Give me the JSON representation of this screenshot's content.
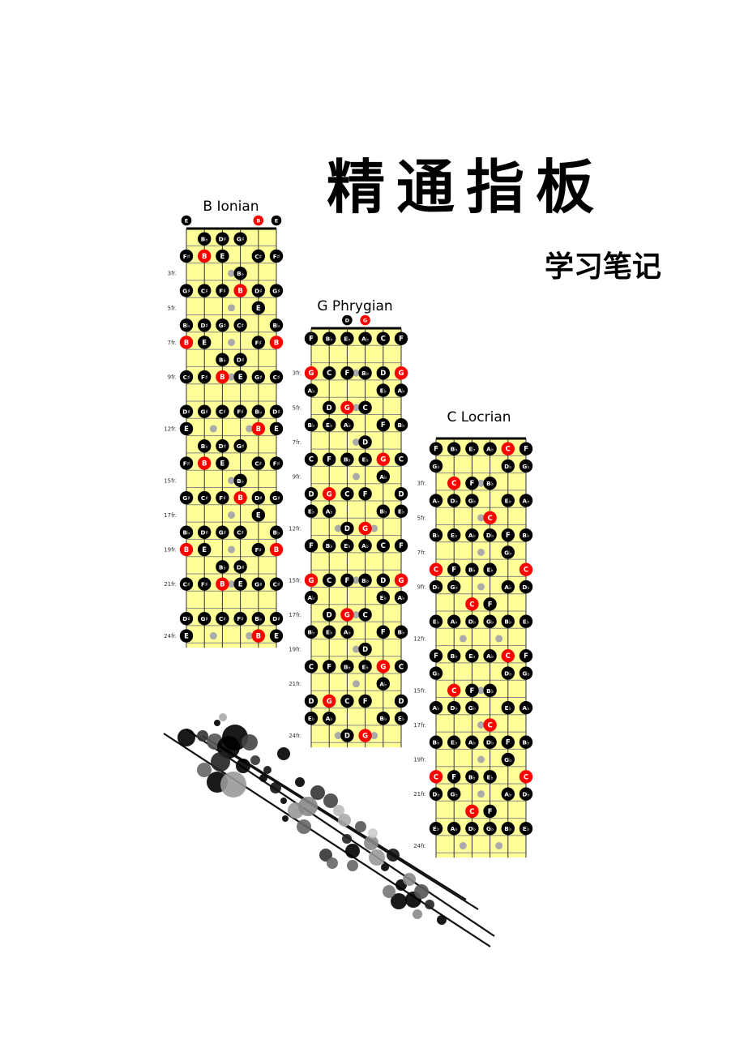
{
  "document": {
    "title": "精通指板",
    "subtitle": "学习笔记"
  },
  "colors": {
    "fretboard": "#ffff99",
    "note": "#000000",
    "root": "#ff0000",
    "marker": "#aaaaaa"
  },
  "fret_label_suffix": "fr.",
  "fretboards": [
    {
      "name": "B Ionian",
      "frets": 24,
      "start_fret": 0,
      "open_notes": [
        {
          "s": 1,
          "n": "E"
        },
        {
          "s": 5,
          "n": "B",
          "root": true
        },
        {
          "s": 6,
          "n": "E"
        }
      ],
      "labeled_frets": [
        3,
        5,
        7,
        9,
        12,
        15,
        17,
        19,
        21,
        24
      ],
      "marker_frets": [
        3,
        5,
        7,
        9,
        12,
        15,
        17,
        19,
        21,
        24
      ],
      "rows": {
        "1": [
          [
            2,
            "B♭"
          ],
          [
            3,
            "D♯"
          ],
          [
            4,
            "G♯"
          ]
        ],
        "2": [
          [
            1,
            "F♯"
          ],
          [
            2,
            "B",
            1
          ],
          [
            3,
            "E"
          ],
          [
            5,
            "C♯"
          ],
          [
            6,
            "F♯"
          ]
        ],
        "3": [
          [
            4,
            "B♭"
          ]
        ],
        "4": [
          [
            1,
            "G♯"
          ],
          [
            2,
            "C♯"
          ],
          [
            3,
            "F♯"
          ],
          [
            4,
            "B",
            1
          ],
          [
            5,
            "D♯"
          ],
          [
            6,
            "G♯"
          ]
        ],
        "5": [
          [
            5,
            "E"
          ]
        ],
        "6": [
          [
            1,
            "B♭"
          ],
          [
            2,
            "D♯"
          ],
          [
            3,
            "G♯"
          ],
          [
            4,
            "C♯"
          ],
          [
            6,
            "B♭"
          ]
        ],
        "7": [
          [
            1,
            "B",
            1
          ],
          [
            2,
            "E"
          ],
          [
            5,
            "F♯"
          ],
          [
            6,
            "B",
            1
          ]
        ],
        "8": [
          [
            3,
            "B♭"
          ],
          [
            4,
            "D♯"
          ]
        ],
        "9": [
          [
            1,
            "C♯"
          ],
          [
            2,
            "F♯"
          ],
          [
            3,
            "B",
            1
          ],
          [
            4,
            "E"
          ],
          [
            5,
            "G♯"
          ],
          [
            6,
            "C♯"
          ]
        ],
        "11": [
          [
            1,
            "D♯"
          ],
          [
            2,
            "G♯"
          ],
          [
            3,
            "C♯"
          ],
          [
            4,
            "F♯"
          ],
          [
            5,
            "B♭"
          ],
          [
            6,
            "D♯"
          ]
        ],
        "12": [
          [
            1,
            "E"
          ],
          [
            5,
            "B",
            1
          ],
          [
            6,
            "E"
          ]
        ],
        "13": [
          [
            2,
            "B♭"
          ],
          [
            3,
            "D♯"
          ],
          [
            4,
            "G♯"
          ]
        ],
        "14": [
          [
            1,
            "F♯"
          ],
          [
            2,
            "B",
            1
          ],
          [
            3,
            "E"
          ],
          [
            5,
            "C♯"
          ],
          [
            6,
            "F♯"
          ]
        ],
        "15": [
          [
            4,
            "B♭"
          ]
        ],
        "16": [
          [
            1,
            "G♯"
          ],
          [
            2,
            "C♯"
          ],
          [
            3,
            "F♯"
          ],
          [
            4,
            "B",
            1
          ],
          [
            5,
            "D♯"
          ],
          [
            6,
            "G♯"
          ]
        ],
        "17": [
          [
            5,
            "E"
          ]
        ],
        "18": [
          [
            1,
            "B♭"
          ],
          [
            2,
            "D♯"
          ],
          [
            3,
            "G♯"
          ],
          [
            4,
            "C♯"
          ],
          [
            6,
            "B♭"
          ]
        ],
        "19": [
          [
            1,
            "B",
            1
          ],
          [
            2,
            "E"
          ],
          [
            5,
            "F♯"
          ],
          [
            6,
            "B",
            1
          ]
        ],
        "20": [
          [
            3,
            "B♭"
          ],
          [
            4,
            "D♯"
          ]
        ],
        "21": [
          [
            1,
            "C♯"
          ],
          [
            2,
            "F♯"
          ],
          [
            3,
            "B",
            1
          ],
          [
            4,
            "E"
          ],
          [
            5,
            "G♯"
          ],
          [
            6,
            "C♯"
          ]
        ],
        "23": [
          [
            1,
            "D♯"
          ],
          [
            2,
            "G♯"
          ],
          [
            3,
            "C♯"
          ],
          [
            4,
            "F♯"
          ],
          [
            5,
            "B♭"
          ],
          [
            6,
            "D♯"
          ]
        ],
        "24": [
          [
            1,
            "E"
          ],
          [
            5,
            "B",
            1
          ],
          [
            6,
            "E"
          ]
        ]
      }
    },
    {
      "name": "G Phrygian",
      "frets": 24,
      "start_fret": 0,
      "open_notes": [
        {
          "s": 3,
          "n": "D"
        },
        {
          "s": 4,
          "n": "G",
          "root": true
        }
      ],
      "labeled_frets": [
        3,
        5,
        7,
        9,
        12,
        15,
        17,
        19,
        21,
        24
      ],
      "marker_frets": [
        3,
        5,
        7,
        9,
        12,
        15,
        17,
        19,
        21,
        24
      ],
      "rows": {
        "1": [
          [
            1,
            "F"
          ],
          [
            2,
            "B♭"
          ],
          [
            3,
            "E♭"
          ],
          [
            4,
            "A♭"
          ],
          [
            5,
            "C"
          ],
          [
            6,
            "F"
          ]
        ],
        "3": [
          [
            1,
            "G",
            1
          ],
          [
            2,
            "C"
          ],
          [
            3,
            "F"
          ],
          [
            4,
            "B♭"
          ],
          [
            5,
            "D"
          ],
          [
            6,
            "G",
            1
          ]
        ],
        "4": [
          [
            1,
            "A♭"
          ],
          [
            5,
            "E♭"
          ],
          [
            6,
            "A♭"
          ]
        ],
        "5": [
          [
            2,
            "D"
          ],
          [
            3,
            "G",
            1
          ],
          [
            4,
            "C"
          ]
        ],
        "6": [
          [
            1,
            "B♭"
          ],
          [
            2,
            "E♭"
          ],
          [
            3,
            "A♭"
          ],
          [
            5,
            "F"
          ],
          [
            6,
            "B♭"
          ]
        ],
        "7": [
          [
            4,
            "D"
          ]
        ],
        "8": [
          [
            1,
            "C"
          ],
          [
            2,
            "F"
          ],
          [
            3,
            "B♭"
          ],
          [
            4,
            "E♭"
          ],
          [
            5,
            "G",
            1
          ],
          [
            6,
            "C"
          ]
        ],
        "9": [
          [
            5,
            "A♭"
          ]
        ],
        "10": [
          [
            1,
            "D"
          ],
          [
            2,
            "G",
            1
          ],
          [
            3,
            "C"
          ],
          [
            4,
            "F"
          ],
          [
            6,
            "D"
          ]
        ],
        "11": [
          [
            1,
            "E♭"
          ],
          [
            2,
            "A♭"
          ],
          [
            5,
            "B♭"
          ],
          [
            6,
            "E♭"
          ]
        ],
        "12": [
          [
            3,
            "D"
          ],
          [
            4,
            "G",
            1
          ]
        ],
        "13": [
          [
            1,
            "F"
          ],
          [
            2,
            "B♭"
          ],
          [
            3,
            "E♭"
          ],
          [
            4,
            "A♭"
          ],
          [
            5,
            "C"
          ],
          [
            6,
            "F"
          ]
        ],
        "15": [
          [
            1,
            "G",
            1
          ],
          [
            2,
            "C"
          ],
          [
            3,
            "F"
          ],
          [
            4,
            "B♭"
          ],
          [
            5,
            "D"
          ],
          [
            6,
            "G",
            1
          ]
        ],
        "16": [
          [
            1,
            "A♭"
          ],
          [
            5,
            "E♭"
          ],
          [
            6,
            "A♭"
          ]
        ],
        "17": [
          [
            2,
            "D"
          ],
          [
            3,
            "G",
            1
          ],
          [
            4,
            "C"
          ]
        ],
        "18": [
          [
            1,
            "B♭"
          ],
          [
            2,
            "E♭"
          ],
          [
            3,
            "A♭"
          ],
          [
            5,
            "F"
          ],
          [
            6,
            "B♭"
          ]
        ],
        "19": [
          [
            4,
            "D"
          ]
        ],
        "20": [
          [
            1,
            "C"
          ],
          [
            2,
            "F"
          ],
          [
            3,
            "B♭"
          ],
          [
            4,
            "E♭"
          ],
          [
            5,
            "G",
            1
          ],
          [
            6,
            "C"
          ]
        ],
        "21": [
          [
            5,
            "A♭"
          ]
        ],
        "22": [
          [
            1,
            "D"
          ],
          [
            2,
            "G",
            1
          ],
          [
            3,
            "C"
          ],
          [
            4,
            "F"
          ],
          [
            6,
            "D"
          ]
        ],
        "23": [
          [
            1,
            "E♭"
          ],
          [
            2,
            "A♭"
          ],
          [
            5,
            "B♭"
          ],
          [
            6,
            "E♭"
          ]
        ],
        "24": [
          [
            3,
            "D"
          ],
          [
            4,
            "G",
            1
          ]
        ]
      }
    },
    {
      "name": "C Locrian",
      "frets": 24,
      "start_fret": 0,
      "open_notes": [],
      "labeled_frets": [
        3,
        5,
        7,
        9,
        12,
        15,
        17,
        19,
        21,
        24
      ],
      "marker_frets": [
        3,
        5,
        7,
        9,
        12,
        15,
        17,
        19,
        21,
        24
      ],
      "rows": {
        "1": [
          [
            1,
            "F"
          ],
          [
            2,
            "B♭"
          ],
          [
            3,
            "E♭"
          ],
          [
            4,
            "A♭"
          ],
          [
            5,
            "C",
            1
          ],
          [
            6,
            "F"
          ]
        ],
        "2": [
          [
            1,
            "G♭"
          ],
          [
            5,
            "D♭"
          ],
          [
            6,
            "G♭"
          ]
        ],
        "3": [
          [
            2,
            "C",
            1
          ],
          [
            3,
            "F"
          ],
          [
            4,
            "B♭"
          ]
        ],
        "4": [
          [
            1,
            "A♭"
          ],
          [
            2,
            "D♭"
          ],
          [
            3,
            "G♭"
          ],
          [
            5,
            "E♭"
          ],
          [
            6,
            "A♭"
          ]
        ],
        "5": [
          [
            4,
            "C",
            1
          ]
        ],
        "6": [
          [
            1,
            "B♭"
          ],
          [
            2,
            "E♭"
          ],
          [
            3,
            "A♭"
          ],
          [
            4,
            "D♭"
          ],
          [
            5,
            "F"
          ],
          [
            6,
            "B♭"
          ]
        ],
        "7": [
          [
            5,
            "G♭"
          ]
        ],
        "8": [
          [
            1,
            "C",
            1
          ],
          [
            2,
            "F"
          ],
          [
            3,
            "B♭"
          ],
          [
            4,
            "E♭"
          ],
          [
            6,
            "C",
            1
          ]
        ],
        "9": [
          [
            1,
            "D♭"
          ],
          [
            2,
            "G♭"
          ],
          [
            5,
            "A♭"
          ],
          [
            6,
            "D♭"
          ]
        ],
        "10": [
          [
            3,
            "C",
            1
          ],
          [
            4,
            "F"
          ]
        ],
        "11": [
          [
            1,
            "E♭"
          ],
          [
            2,
            "A♭"
          ],
          [
            3,
            "D♭"
          ],
          [
            4,
            "G♭"
          ],
          [
            5,
            "B♭"
          ],
          [
            6,
            "E♭"
          ]
        ],
        "13": [
          [
            1,
            "F"
          ],
          [
            2,
            "B♭"
          ],
          [
            3,
            "E♭"
          ],
          [
            4,
            "A♭"
          ],
          [
            5,
            "C",
            1
          ],
          [
            6,
            "F"
          ]
        ],
        "14": [
          [
            1,
            "G♭"
          ],
          [
            5,
            "D♭"
          ],
          [
            6,
            "G♭"
          ]
        ],
        "15": [
          [
            2,
            "C",
            1
          ],
          [
            3,
            "F"
          ],
          [
            4,
            "B♭"
          ]
        ],
        "16": [
          [
            1,
            "A♭"
          ],
          [
            2,
            "D♭"
          ],
          [
            3,
            "G♭"
          ],
          [
            5,
            "E♭"
          ],
          [
            6,
            "A♭"
          ]
        ],
        "17": [
          [
            4,
            "C",
            1
          ]
        ],
        "18": [
          [
            1,
            "B♭"
          ],
          [
            2,
            "E♭"
          ],
          [
            3,
            "A♭"
          ],
          [
            4,
            "D♭"
          ],
          [
            5,
            "F"
          ],
          [
            6,
            "B♭"
          ]
        ],
        "19": [
          [
            5,
            "G♭"
          ]
        ],
        "20": [
          [
            1,
            "C",
            1
          ],
          [
            2,
            "F"
          ],
          [
            3,
            "B♭"
          ],
          [
            4,
            "E♭"
          ],
          [
            6,
            "C",
            1
          ]
        ],
        "21": [
          [
            1,
            "D♭"
          ],
          [
            2,
            "G♭"
          ],
          [
            5,
            "A♭"
          ],
          [
            6,
            "D♭"
          ]
        ],
        "22": [
          [
            3,
            "C",
            1
          ],
          [
            4,
            "F"
          ]
        ],
        "23": [
          [
            1,
            "E♭"
          ],
          [
            2,
            "A♭"
          ],
          [
            3,
            "D♭"
          ],
          [
            4,
            "G♭"
          ],
          [
            5,
            "B♭"
          ],
          [
            6,
            "E♭"
          ]
        ]
      }
    }
  ]
}
